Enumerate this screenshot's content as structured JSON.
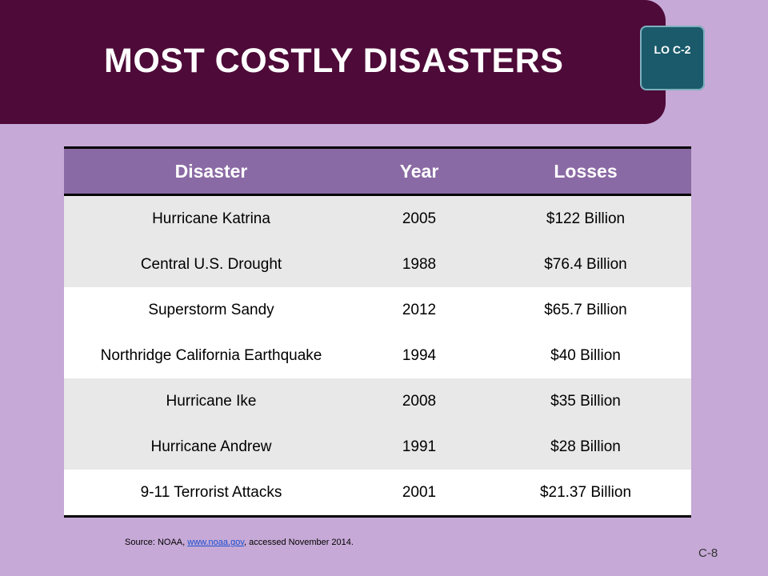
{
  "slide": {
    "title": "MOST COSTLY DISASTERS",
    "badge": "LO C-2",
    "page_number": "C-8"
  },
  "table": {
    "headers": [
      "Disaster",
      "Year",
      "Losses"
    ],
    "rows": [
      [
        "Hurricane Katrina",
        "2005",
        "$122 Billion"
      ],
      [
        "Central U.S. Drought",
        "1988",
        "$76.4 Billion"
      ],
      [
        "Superstorm Sandy",
        "2012",
        "$65.7 Billion"
      ],
      [
        "Northridge California Earthquake",
        "1994",
        "$40 Billion"
      ],
      [
        "Hurricane Ike",
        "2008",
        "$35 Billion"
      ],
      [
        "Hurricane Andrew",
        "1991",
        "$28 Billion"
      ],
      [
        "9-11 Terrorist Attacks",
        "2001",
        "$21.37 Billion"
      ]
    ]
  },
  "source": {
    "prefix": "Source: NOAA, ",
    "link_text": "www.noaa.gov",
    "suffix": ", accessed November 2014."
  },
  "colors": {
    "background": "#c6a9d6",
    "banner": "#4e0a38",
    "badge": "#1a5a6b",
    "header": "#8a6aa4"
  }
}
